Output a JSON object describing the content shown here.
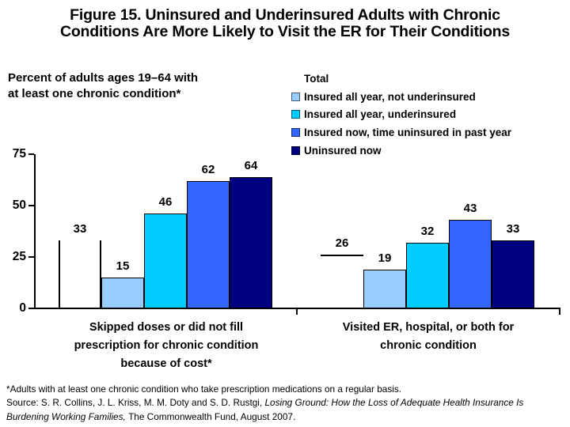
{
  "chart_data": {
    "type": "bar",
    "title_lines": [
      "Figure 15. Uninsured and Underinsured Adults with Chronic",
      "Conditions Are More Likely to Visit the ER for Their Conditions"
    ],
    "subtitle_lines": [
      "Percent of adults ages 19–64 with",
      "at least one chronic condition*"
    ],
    "series": [
      {
        "name": "Total",
        "color": "#FFFFFF",
        "style": "outline",
        "values": [
          33,
          26
        ]
      },
      {
        "name": "Insured all year, not underinsured",
        "color": "#99CCFF",
        "values": [
          15,
          19
        ]
      },
      {
        "name": "Insured all year, underinsured",
        "color": "#00CCFF",
        "values": [
          46,
          32
        ]
      },
      {
        "name": "Insured now, time uninsured in past year",
        "color": "#3366FF",
        "values": [
          62,
          43
        ]
      },
      {
        "name": "Uninsured now",
        "color": "#000080",
        "values": [
          64,
          33
        ]
      }
    ],
    "categories": [
      {
        "lines": [
          "Skipped doses or did not fill",
          "prescription for chronic condition",
          "because of cost*"
        ]
      },
      {
        "lines": [
          "Visited ER, hospital, or both for",
          "chronic condition"
        ]
      }
    ],
    "yticks": [
      0,
      25,
      50,
      75
    ],
    "ylim": [
      0,
      75
    ],
    "grid": false,
    "legend_position": "top-right",
    "text_color": "#000000"
  },
  "footnote": {
    "note": "*Adults with at least one chronic condition who take prescription medications on a regular basis.",
    "source_prefix": "Source: S. R. Collins, J. L. Kriss, M. M. Doty and S. D. Rustgi, ",
    "source_italic_line1": "Losing Ground: How the Loss of Adequate Health Insurance Is",
    "source_italic_line2": "Burdening Working Families, ",
    "source_suffix": "The Commonwealth Fund, August 2007."
  }
}
